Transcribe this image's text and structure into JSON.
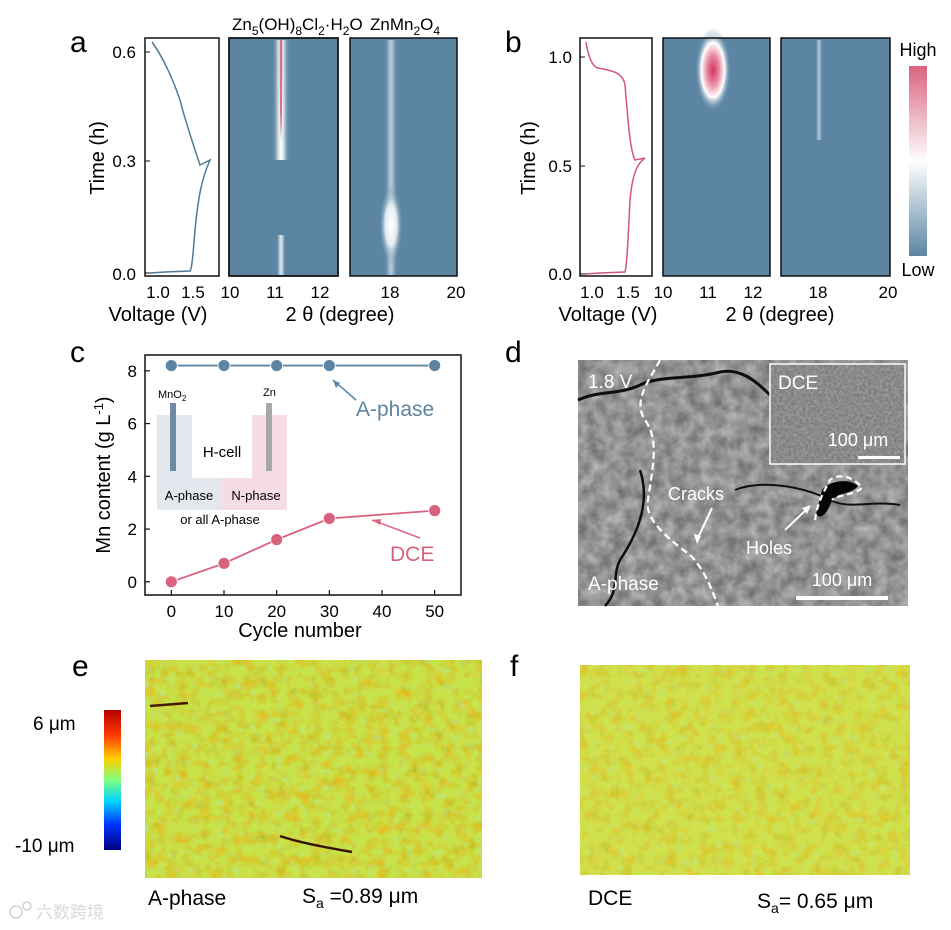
{
  "colors": {
    "steel": "#5b85a3",
    "pink": "#d9637f",
    "axis": "#111111"
  },
  "panel_labels": {
    "a": "a",
    "b": "b",
    "c": "c",
    "d": "d",
    "e": "e",
    "f": "f"
  },
  "panel_a": {
    "header_left": {
      "base": "Zn",
      "s1": "5",
      "p1": "(OH)",
      "s2": "8",
      "p2": "Cl",
      "s3": "2",
      "p3": "·H",
      "s4": "2",
      "p4": "O"
    },
    "header_right": {
      "base": "ZnMn",
      "s1": "2",
      "p1": "O",
      "s2": "4"
    },
    "ylabel": "Time (h)",
    "yticks": [
      "0.0",
      "0.3",
      "0.6"
    ],
    "voltage_xticks": [
      "1.0",
      "1.5"
    ],
    "voltage_xlabel": "Voltage (V)",
    "theta_xticks_1": [
      "10",
      "11",
      "12"
    ],
    "theta_xticks_2": [
      "18",
      "20"
    ],
    "theta_xlabel": "2 θ (degree)"
  },
  "panel_b": {
    "ylabel": "Time (h)",
    "yticks": [
      "0.0",
      "0.5",
      "1.0"
    ],
    "voltage_xticks": [
      "1.0",
      "1.5"
    ],
    "voltage_xlabel": "Voltage (V)",
    "theta_xticks_1": [
      "10",
      "11",
      "12"
    ],
    "theta_xticks_2": [
      "18",
      "20"
    ],
    "theta_xlabel": "2 θ (degree)",
    "colorbar_high": "High",
    "colorbar_low": "Low"
  },
  "chart_data": [
    {
      "type": "line",
      "panel": "c",
      "xlabel": "Cycle number",
      "ylabel": "Mn content (g L",
      "ylabel_sup": "-1",
      "ylabel_tail": ")",
      "xlim": [
        -5,
        55
      ],
      "ylim": [
        -0.5,
        8.6
      ],
      "xticks": [
        0,
        10,
        20,
        30,
        40,
        50
      ],
      "yticks": [
        0,
        2,
        4,
        6,
        8
      ],
      "series": [
        {
          "name": "A-phase",
          "x": [
            0,
            10,
            20,
            30,
            50
          ],
          "y": [
            8.2,
            8.2,
            8.2,
            8.2,
            8.2
          ],
          "color": "#5b85a3"
        },
        {
          "name": "DCE",
          "x": [
            0,
            10,
            20,
            30,
            50
          ],
          "y": [
            0.0,
            0.7,
            1.6,
            2.4,
            2.7
          ],
          "color": "#d9637f"
        }
      ]
    }
  ],
  "panel_c_inset": {
    "mno2": "MnO",
    "mno2_sub": "2",
    "zn": "Zn",
    "hcell": "H-cell",
    "a_phase": "A-phase",
    "n_phase": "N-phase",
    "or_all": "or all A-phase"
  },
  "panel_d": {
    "voltage": "1.8 V",
    "phase": "A-phase",
    "cracks": "Cracks",
    "holes": "Holes",
    "scale": "100 μm",
    "inset_label": "DCE",
    "inset_scale": "100 μm"
  },
  "panel_e": {
    "colorbar_top": "6 μm",
    "colorbar_bottom": "-10 μm",
    "label": "A-phase",
    "sa_prefix": "S",
    "sa_sub": "a",
    "sa_value": " =0.89 μm"
  },
  "panel_f": {
    "label": "DCE",
    "sa_prefix": "S",
    "sa_sub": "a",
    "sa_value": "= 0.65 μm"
  },
  "watermark": "六数跨境"
}
